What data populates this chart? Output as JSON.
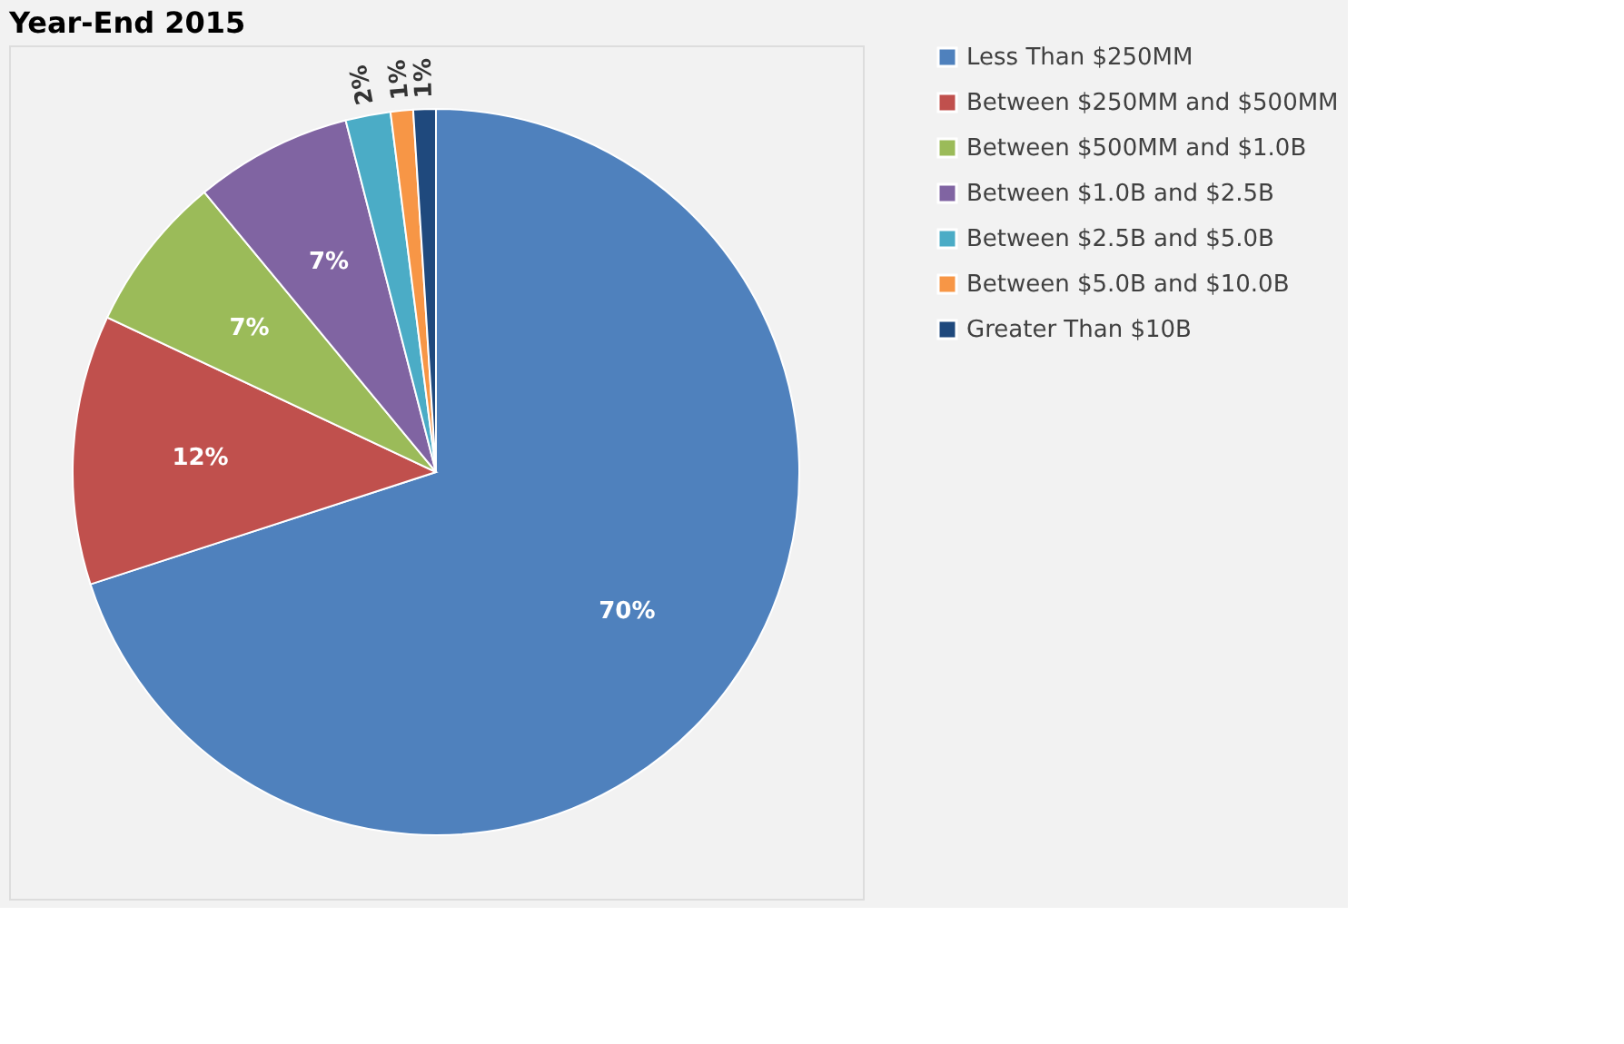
{
  "chart_data": {
    "type": "pie",
    "title": "Year-End 2015",
    "categories": [
      "Less Than $250MM",
      "Between $250MM and $500MM",
      "Between $500MM and $1.0B",
      "Between $1.0B and $2.5B",
      "Between $2.5B and $5.0B",
      "Between $5.0B and $10.0B",
      "Greater Than $10B"
    ],
    "values": [
      70,
      12,
      7,
      7,
      2,
      1,
      1
    ],
    "colors": [
      "#4f81bd",
      "#c0504d",
      "#9bbb59",
      "#8064a2",
      "#4bacc6",
      "#f79646",
      "#1f497d"
    ],
    "value_labels": [
      "70%",
      "12%",
      "7%",
      "7%",
      "2%",
      "1%",
      "1%"
    ],
    "legend": "right"
  }
}
